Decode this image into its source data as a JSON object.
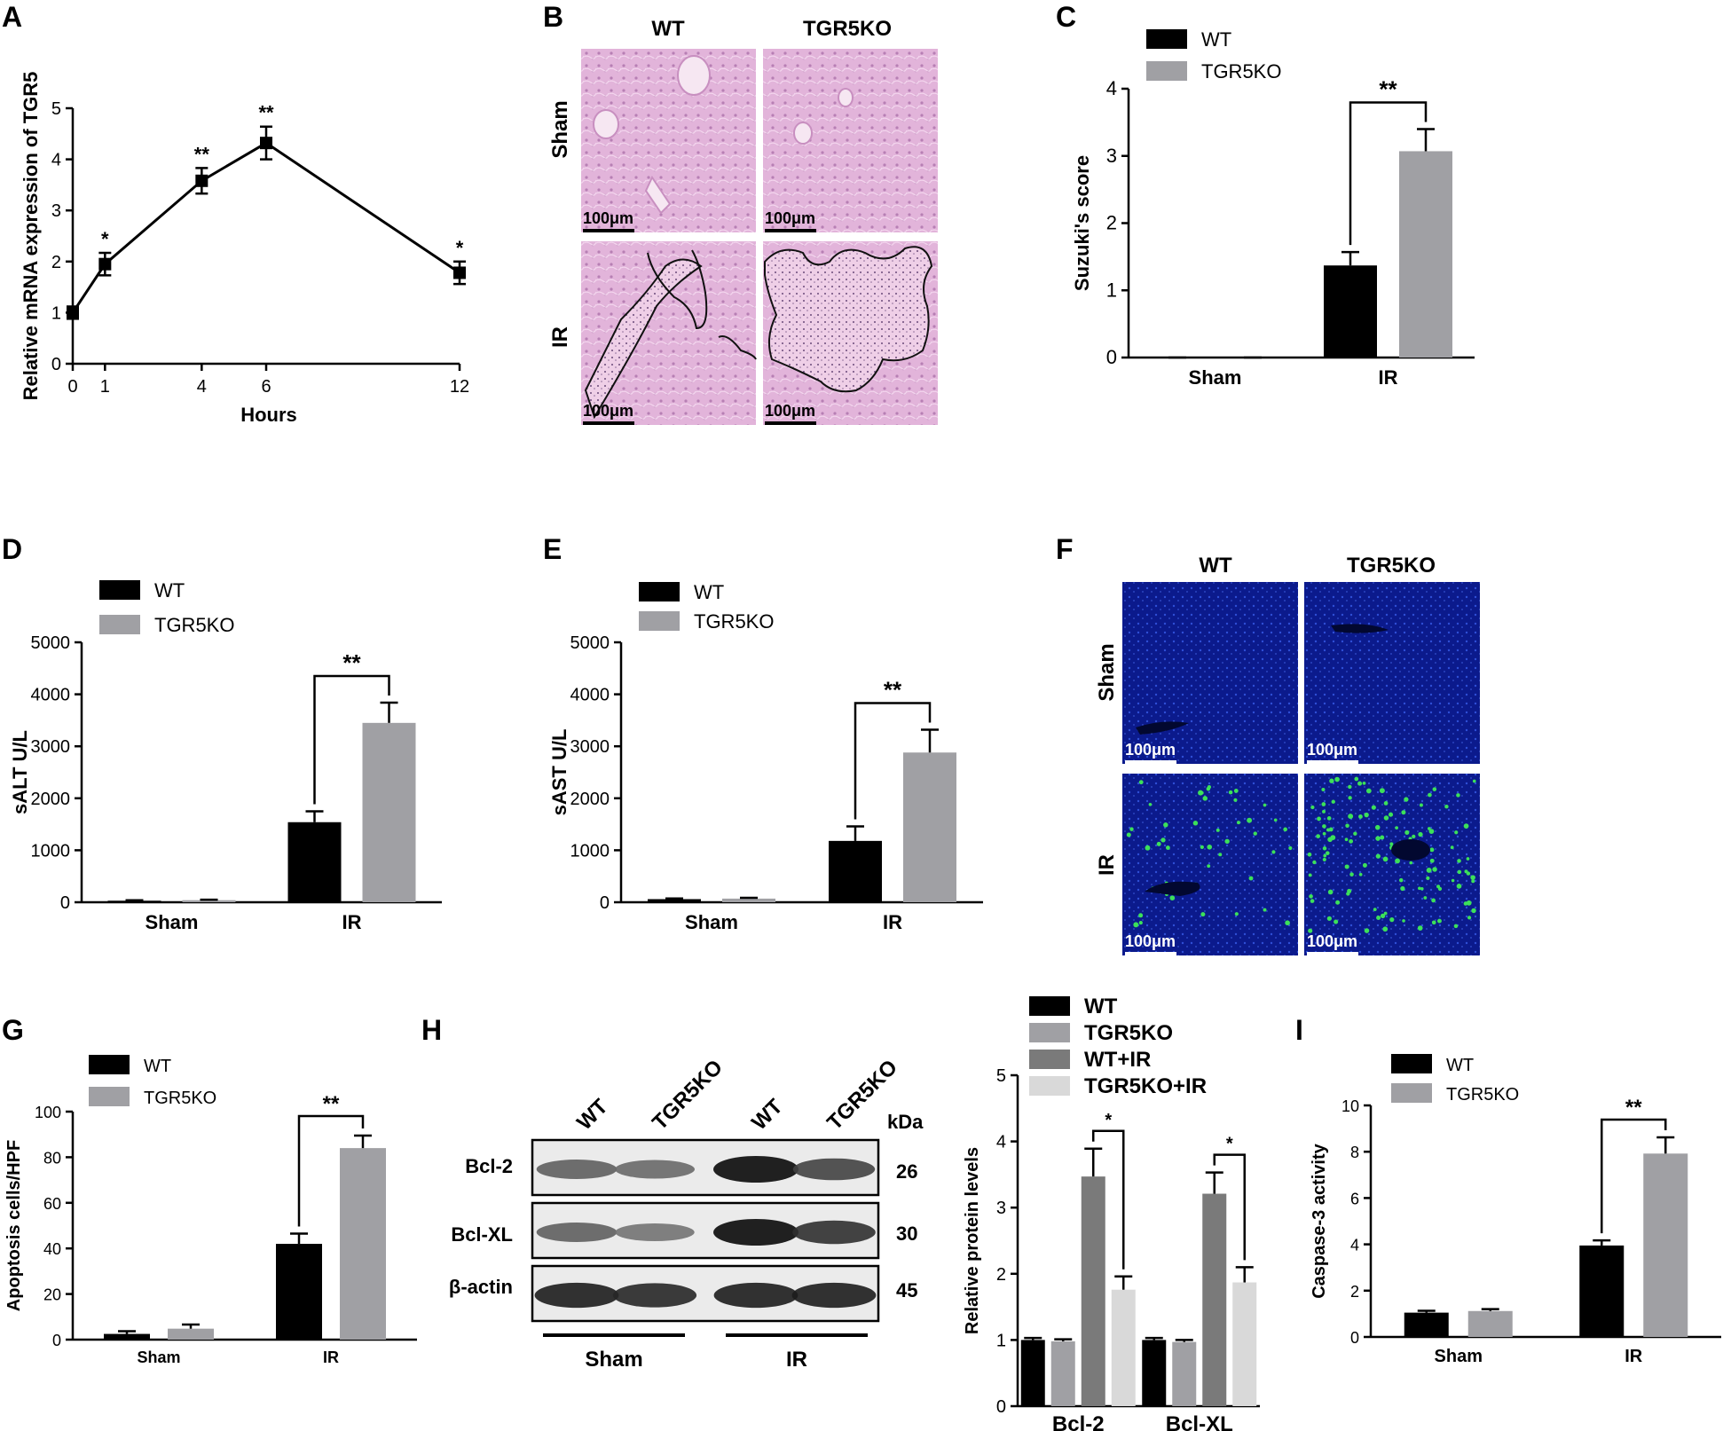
{
  "colors": {
    "wt": "#000000",
    "ko": "#a0a0a4",
    "wt_ir": "#7a7a7a",
    "ko_ir": "#d9d9d9",
    "he_tissue": "#e2b4da",
    "tunel_bg": "#0b1a8c",
    "tunel_dot": "#3ce05a"
  },
  "panel_labels": {
    "a": "A",
    "b": "B",
    "c": "C",
    "d": "D",
    "e": "E",
    "f": "F",
    "g": "G",
    "h": "H",
    "i": "I"
  },
  "legend": {
    "wt": "WT",
    "ko": "TGR5KO",
    "wt_ir": "WT+IR",
    "ko_ir": "TGR5KO+IR"
  },
  "micro": {
    "col_wt": "WT",
    "col_ko": "TGR5KO",
    "row_sham": "Sham",
    "row_ir": "IR",
    "scale": "100μm"
  },
  "blot": {
    "lanes": [
      "WT",
      "TGR5KO",
      "WT",
      "TGR5KO"
    ],
    "kda_label": "kDa",
    "rows": [
      {
        "name": "Bcl-2",
        "kda": "26",
        "intensity": [
          0.55,
          0.5,
          1.0,
          0.7
        ]
      },
      {
        "name": "Bcl-XL",
        "kda": "30",
        "intensity": [
          0.55,
          0.45,
          1.0,
          0.8
        ]
      },
      {
        "name": "β-actin",
        "kda": "45",
        "intensity": [
          0.9,
          0.85,
          0.9,
          0.9
        ]
      }
    ],
    "group_sham": "Sham",
    "group_ir": "IR"
  },
  "chart_data": [
    {
      "id": "A",
      "type": "line",
      "xlabel": "Hours",
      "ylabel": "Relative mRNA expression of TGR5",
      "x": [
        0,
        1,
        4,
        6,
        12
      ],
      "y": [
        1.0,
        1.95,
        3.58,
        4.32,
        1.78
      ],
      "err": [
        0.12,
        0.22,
        0.25,
        0.32,
        0.22
      ],
      "sig": [
        "",
        "*",
        "**",
        "**",
        "*"
      ],
      "xticks": [
        "0",
        "1",
        "4",
        "6",
        "12"
      ],
      "yticks": [
        "0",
        "1",
        "2",
        "3",
        "4",
        "5"
      ],
      "xlim": [
        0,
        12
      ],
      "ylim": [
        0,
        5
      ]
    },
    {
      "id": "C",
      "type": "bar",
      "ylabel": "Suzuki's score",
      "categories": [
        "Sham",
        "IR"
      ],
      "yticks": [
        "0",
        "1",
        "2",
        "3",
        "4"
      ],
      "ylim": [
        0,
        4
      ],
      "series": [
        {
          "name": "WT",
          "values": [
            0,
            1.37
          ],
          "err": [
            0,
            0.2
          ]
        },
        {
          "name": "TGR5KO",
          "values": [
            0,
            3.07
          ],
          "err": [
            0,
            0.33
          ]
        }
      ],
      "sig": [
        {
          "category": 1,
          "label": "**"
        }
      ]
    },
    {
      "id": "D",
      "type": "bar",
      "ylabel": "sALT U/L",
      "categories": [
        "Sham",
        "IR"
      ],
      "yticks": [
        "0",
        "1000",
        "2000",
        "3000",
        "4000",
        "5000"
      ],
      "ylim": [
        0,
        5000
      ],
      "series": [
        {
          "name": "WT",
          "values": [
            30,
            1540
          ],
          "err": [
            8,
            210
          ]
        },
        {
          "name": "TGR5KO",
          "values": [
            40,
            3450
          ],
          "err": [
            10,
            390
          ]
        }
      ],
      "sig": [
        {
          "category": 1,
          "label": "**"
        }
      ]
    },
    {
      "id": "E",
      "type": "bar",
      "ylabel": "sAST U/L",
      "categories": [
        "Sham",
        "IR"
      ],
      "yticks": [
        "0",
        "1000",
        "2000",
        "3000",
        "4000",
        "5000"
      ],
      "ylim": [
        0,
        5000
      ],
      "series": [
        {
          "name": "WT",
          "values": [
            60,
            1180
          ],
          "err": [
            12,
            280
          ]
        },
        {
          "name": "TGR5KO",
          "values": [
            70,
            2880
          ],
          "err": [
            15,
            440
          ]
        }
      ],
      "sig": [
        {
          "category": 1,
          "label": "**"
        }
      ]
    },
    {
      "id": "G",
      "type": "bar",
      "ylabel": "Apoptosis cells/HPF",
      "categories": [
        "Sham",
        "IR"
      ],
      "yticks": [
        "0",
        "20",
        "40",
        "60",
        "80",
        "100"
      ],
      "ylim": [
        0,
        100
      ],
      "series": [
        {
          "name": "WT",
          "values": [
            2.5,
            42
          ],
          "err": [
            1.2,
            4.5
          ]
        },
        {
          "name": "TGR5KO",
          "values": [
            4.8,
            84
          ],
          "err": [
            1.8,
            5.5
          ]
        }
      ],
      "sig": [
        {
          "category": 1,
          "label": "**"
        }
      ]
    },
    {
      "id": "H",
      "type": "bar",
      "ylabel": "Relative protein levels",
      "categories": [
        "Bcl-2",
        "Bcl-XL"
      ],
      "yticks": [
        "0",
        "1",
        "2",
        "3",
        "4",
        "5"
      ],
      "ylim": [
        0,
        5
      ],
      "series": [
        {
          "name": "WT",
          "values": [
            1.0,
            1.0
          ],
          "err": [
            0.03,
            0.03
          ]
        },
        {
          "name": "TGR5KO",
          "values": [
            0.98,
            0.97
          ],
          "err": [
            0.03,
            0.03
          ]
        },
        {
          "name": "WT+IR",
          "values": [
            3.47,
            3.21
          ],
          "err": [
            0.42,
            0.32
          ]
        },
        {
          "name": "TGR5KO+IR",
          "values": [
            1.76,
            1.87
          ],
          "err": [
            0.2,
            0.23
          ]
        }
      ],
      "sig": [
        {
          "category": 0,
          "label": "*"
        },
        {
          "category": 1,
          "label": "*"
        }
      ]
    },
    {
      "id": "I",
      "type": "bar",
      "ylabel": "Caspase-3 activity",
      "categories": [
        "Sham",
        "IR"
      ],
      "yticks": [
        "0",
        "2",
        "4",
        "6",
        "8",
        "10"
      ],
      "ylim": [
        0,
        10
      ],
      "series": [
        {
          "name": "WT",
          "values": [
            1.05,
            3.95
          ],
          "err": [
            0.08,
            0.22
          ]
        },
        {
          "name": "TGR5KO",
          "values": [
            1.12,
            7.92
          ],
          "err": [
            0.08,
            0.7
          ]
        }
      ],
      "sig": [
        {
          "category": 1,
          "label": "**"
        }
      ]
    }
  ]
}
